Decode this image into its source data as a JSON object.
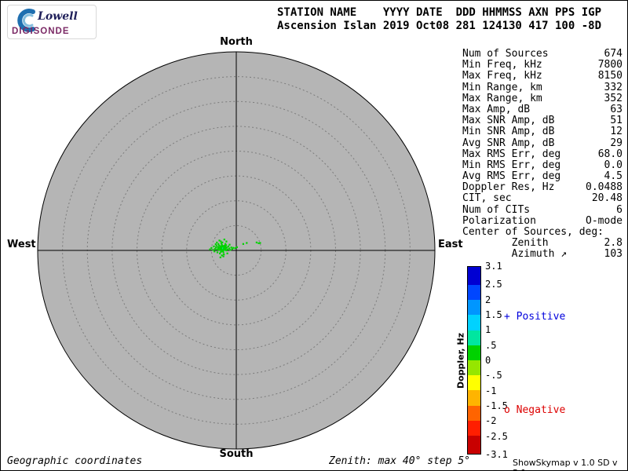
{
  "logo": {
    "name": "Lowell",
    "product": "DIGISONDE"
  },
  "header": {
    "line1": "STATION NAME    YYYY DATE  DDD HHMMSS AXN PPS IGP",
    "line2": "Ascension Islan 2019 Oct08 281 124130 417 100 -8D"
  },
  "compass": {
    "north": "North",
    "south": "South",
    "west": "West",
    "east": "East"
  },
  "stats": {
    "rows": [
      {
        "label": "Num of Sources",
        "value": "674"
      },
      {
        "label": "Min Freq, kHz",
        "value": "7800"
      },
      {
        "label": "Max Freq, kHz",
        "value": "8150"
      },
      {
        "label": "Min Range, km",
        "value": "332"
      },
      {
        "label": "Max Range, km",
        "value": "352"
      },
      {
        "label": "Max Amp, dB",
        "value": "63"
      },
      {
        "label": "Max SNR Amp, dB",
        "value": "51"
      },
      {
        "label": "Min SNR Amp, dB",
        "value": "12"
      },
      {
        "label": "Avg SNR Amp, dB",
        "value": "29"
      },
      {
        "label": "Max RMS Err, deg",
        "value": "68.0"
      },
      {
        "label": "Min RMS Err, deg",
        "value": "0.0"
      },
      {
        "label": "Avg RMS Err, deg",
        "value": "4.5"
      },
      {
        "label": "Doppler Res, Hz",
        "value": "0.0488"
      },
      {
        "label": "CIT, sec",
        "value": "20.48"
      },
      {
        "label": "Num of CITs",
        "value": "6"
      },
      {
        "label": "Polarization",
        "value": "O-mode"
      },
      {
        "label": "Center of Sources, deg:",
        "value": ""
      },
      {
        "label": "        Zenith",
        "value": "2.8"
      },
      {
        "label": "        Azimuth ↗",
        "value": "103"
      }
    ]
  },
  "colorbar": {
    "title": "Doppler, Hz",
    "ticks": [
      "3.1",
      "2.5",
      "2",
      "1.5",
      "1",
      ".5",
      "0",
      "-.5",
      "-1",
      "-1.5",
      "-2",
      "-2.5",
      "-3.1"
    ],
    "tick_values": [
      3.1,
      2.5,
      2,
      1.5,
      1,
      0.5,
      0,
      -0.5,
      -1,
      -1.5,
      -2,
      -2.5,
      -3.1
    ],
    "min": -3.1,
    "max": 3.1,
    "segments": [
      "#0000d2",
      "#0046ff",
      "#0096ff",
      "#00d2ff",
      "#00e6a0",
      "#00d200",
      "#96e600",
      "#ffff00",
      "#ffb400",
      "#ff6400",
      "#ff1e00",
      "#c80000"
    ],
    "positive": {
      "label": "+ Positive",
      "color": "#0000dd"
    },
    "negative": {
      "label": "o Negative",
      "color": "#dd0000"
    }
  },
  "footer": {
    "left": "Geographic coordinates",
    "center": "Zenith: max 40°  step 5°",
    "right": "ShowSkymap v 1.0  SD v 5.1"
  },
  "chart_data": {
    "type": "scatter",
    "projection": "polar_skymap",
    "zenith_max_deg": 40,
    "ring_step_deg": 5,
    "orientation": {
      "top": "North",
      "bottom": "South",
      "left": "West",
      "right": "East"
    },
    "coordinates": "Geographic coordinates",
    "color_scale": {
      "label": "Doppler, Hz",
      "min": -3.1,
      "max": 3.1,
      "unit": "Hz"
    },
    "center_of_sources": {
      "zenith_deg": 2.8,
      "azimuth_deg": 103
    },
    "background_color": "#b5b5b5",
    "point_fields": [
      "east_offset_deg",
      "north_offset_deg",
      "doppler_hz"
    ],
    "points": [
      [
        -2.9,
        0.4,
        0.31
      ],
      [
        -3.1,
        0.2,
        0.28
      ],
      [
        -2.7,
        0.6,
        0.35
      ],
      [
        -3.3,
        0.5,
        0.3
      ],
      [
        -2.5,
        0.3,
        0.26
      ],
      [
        -3.0,
        0.8,
        0.33
      ],
      [
        -2.8,
        -0.1,
        0.29
      ],
      [
        -3.4,
        0.1,
        0.24
      ],
      [
        -2.6,
        0.9,
        0.37
      ],
      [
        -3.2,
        0.7,
        0.31
      ],
      [
        -2.4,
        0.5,
        0.28
      ],
      [
        -3.6,
        0.4,
        0.26
      ],
      [
        -2.9,
        1.1,
        0.34
      ],
      [
        -3.1,
        -0.3,
        0.27
      ],
      [
        -2.3,
        0.1,
        0.3
      ],
      [
        -3.7,
        0.7,
        0.25
      ],
      [
        -2.6,
        -0.4,
        0.29
      ],
      [
        -3.5,
        1.0,
        0.32
      ],
      [
        -2.2,
        0.7,
        0.27
      ],
      [
        -3.0,
        1.4,
        0.35
      ],
      [
        -3.9,
        0.2,
        0.23
      ],
      [
        -2.1,
        0.3,
        0.31
      ],
      [
        -3.3,
        -0.6,
        0.26
      ],
      [
        -2.8,
        1.6,
        0.3
      ],
      [
        -4.1,
        0.6,
        0.24
      ],
      [
        -1.9,
        0.6,
        0.28
      ],
      [
        -3.6,
        1.3,
        0.29
      ],
      [
        -2.5,
        -0.8,
        0.25
      ],
      [
        -4.3,
        0.3,
        0.22
      ],
      [
        -1.7,
        0.2,
        0.27
      ],
      [
        -3.1,
        1.8,
        0.31
      ],
      [
        -2.9,
        -1.0,
        0.24
      ],
      [
        -4.0,
        1.0,
        0.27
      ],
      [
        -1.6,
        0.8,
        0.26
      ],
      [
        -3.8,
        -0.4,
        0.23
      ],
      [
        -2.2,
        1.3,
        0.29
      ],
      [
        -4.5,
        0.8,
        0.21
      ],
      [
        -1.4,
        0.4,
        0.25
      ],
      [
        -3.4,
        2.0,
        0.28
      ],
      [
        -2.6,
        -1.2,
        0.22
      ],
      [
        -4.7,
        0.1,
        0.2
      ],
      [
        -1.2,
        0.1,
        0.24
      ],
      [
        -2.0,
        1.8,
        0.26
      ],
      [
        -3.9,
        1.6,
        0.25
      ],
      [
        -1.0,
        0.6,
        0.23
      ],
      [
        -5.0,
        0.5,
        0.19
      ],
      [
        -2.4,
        2.2,
        0.24
      ],
      [
        -3.2,
        -1.4,
        0.21
      ],
      [
        -0.8,
        0.3,
        0.22
      ],
      [
        -5.3,
        0.2,
        0.18
      ],
      [
        -1.8,
        -0.6,
        0.26
      ],
      [
        -4.4,
        -0.2,
        0.2
      ],
      [
        -0.6,
        0.5,
        0.21
      ],
      [
        -2.0,
        0.0,
        0.33
      ],
      [
        -2.95,
        0.55,
        0.42
      ],
      [
        -2.75,
        0.25,
        0.45
      ],
      [
        -3.15,
        0.45,
        0.4
      ],
      [
        -2.55,
        0.65,
        0.38
      ],
      [
        -3.05,
        0.05,
        0.36
      ],
      [
        -2.85,
        0.85,
        0.44
      ],
      [
        -2.65,
        0.45,
        0.5
      ],
      [
        -3.25,
        0.85,
        0.39
      ],
      [
        -2.45,
        0.15,
        0.41
      ],
      [
        -3.45,
        0.55,
        0.37
      ],
      [
        -2.35,
        0.95,
        0.36
      ],
      [
        -3.55,
        0.15,
        0.35
      ],
      [
        -2.15,
        0.55,
        0.34
      ],
      [
        -2.05,
        1.05,
        0.32
      ],
      [
        -4.15,
        1.25,
        0.23
      ],
      [
        -1.35,
        1.15,
        0.22
      ],
      [
        -0.2,
        0.45,
        0.28
      ],
      [
        0.15,
        0.65,
        0.26
      ],
      [
        1.4,
        1.3,
        0.25
      ],
      [
        2.1,
        1.5,
        0.27
      ],
      [
        4.1,
        1.6,
        0.24
      ],
      [
        4.5,
        1.45,
        0.26
      ],
      [
        4.8,
        1.5,
        0.22
      ],
      [
        -2.7,
        -0.15,
        0.43
      ],
      [
        -3.0,
        0.6,
        0.47
      ],
      [
        -2.5,
        0.45,
        0.39
      ]
    ]
  }
}
